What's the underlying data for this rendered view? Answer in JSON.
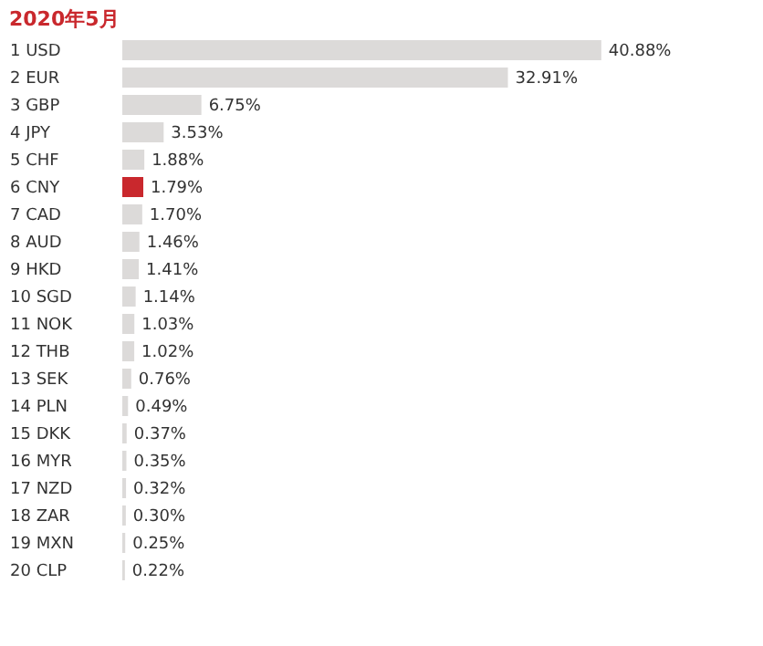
{
  "chart_data": {
    "type": "bar",
    "orientation": "horizontal",
    "title": "2020年5月",
    "categories": [
      "1 USD",
      "2 EUR",
      "3 GBP",
      "4 JPY",
      "5 CHF",
      "6 CNY",
      "7 CAD",
      "8 AUD",
      "9 HKD",
      "10 SGD",
      "11 NOK",
      "12 THB",
      "13 SEK",
      "14 PLN",
      "15 DKK",
      "16 MYR",
      "17 NZD",
      "18 ZAR",
      "19 MXN",
      "20 CLP"
    ],
    "values": [
      40.88,
      32.91,
      6.75,
      3.53,
      1.88,
      1.79,
      1.7,
      1.46,
      1.41,
      1.14,
      1.03,
      1.02,
      0.76,
      0.49,
      0.37,
      0.35,
      0.32,
      0.3,
      0.25,
      0.22
    ],
    "colors": [
      "#dcdad9",
      "#dcdad9",
      "#dcdad9",
      "#dcdad9",
      "#dcdad9",
      "#c9282d",
      "#dcdad9",
      "#dcdad9",
      "#dcdad9",
      "#dcdad9",
      "#dcdad9",
      "#dcdad9",
      "#dcdad9",
      "#dcdad9",
      "#dcdad9",
      "#dcdad9",
      "#dcdad9",
      "#dcdad9",
      "#dcdad9",
      "#dcdad9"
    ],
    "value_labels": [
      "40.88%",
      "32.91%",
      "6.75%",
      "3.53%",
      "1.88%",
      "1.79%",
      "1.70%",
      "1.46%",
      "1.41%",
      "1.14%",
      "1.03%",
      "1.02%",
      "0.76%",
      "0.49%",
      "0.37%",
      "0.35%",
      "0.32%",
      "0.30%",
      "0.25%",
      "0.22%"
    ],
    "grid": false
  }
}
